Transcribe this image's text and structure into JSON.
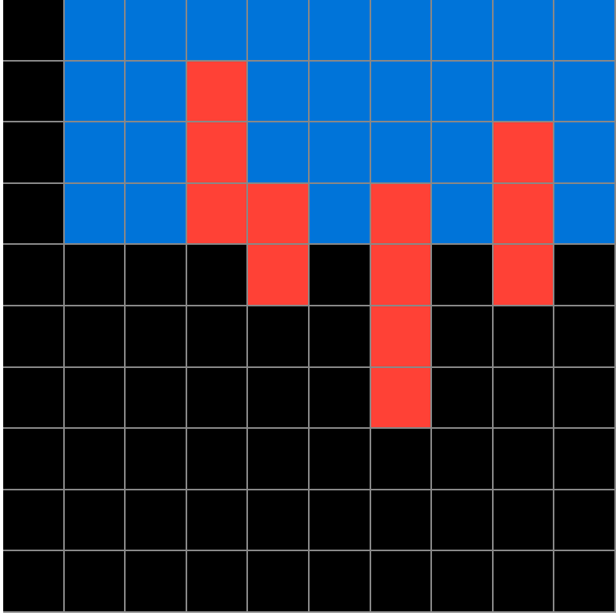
{
  "grid": {
    "rows": 10,
    "cols": 10,
    "cells": [
      [
        0,
        1,
        1,
        1,
        1,
        1,
        1,
        1,
        1,
        1
      ],
      [
        0,
        1,
        1,
        2,
        1,
        1,
        1,
        1,
        1,
        1
      ],
      [
        0,
        1,
        1,
        2,
        1,
        1,
        1,
        1,
        2,
        1
      ],
      [
        0,
        1,
        1,
        2,
        2,
        1,
        2,
        1,
        2,
        1
      ],
      [
        0,
        0,
        0,
        0,
        2,
        0,
        2,
        0,
        2,
        0
      ],
      [
        0,
        0,
        0,
        0,
        0,
        0,
        2,
        0,
        0,
        0
      ],
      [
        0,
        0,
        0,
        0,
        0,
        0,
        2,
        0,
        0,
        0
      ],
      [
        0,
        0,
        0,
        0,
        0,
        0,
        0,
        0,
        0,
        0
      ],
      [
        0,
        0,
        0,
        0,
        0,
        0,
        0,
        0,
        0,
        0
      ],
      [
        0,
        0,
        0,
        0,
        0,
        0,
        0,
        0,
        0,
        0
      ]
    ]
  },
  "palette": {
    "0": "#000000",
    "1": "#0074d9",
    "2": "#ff4136"
  },
  "cell_names": {
    "0": "black",
    "1": "blue",
    "2": "red"
  },
  "grid_line_color": "#888888"
}
